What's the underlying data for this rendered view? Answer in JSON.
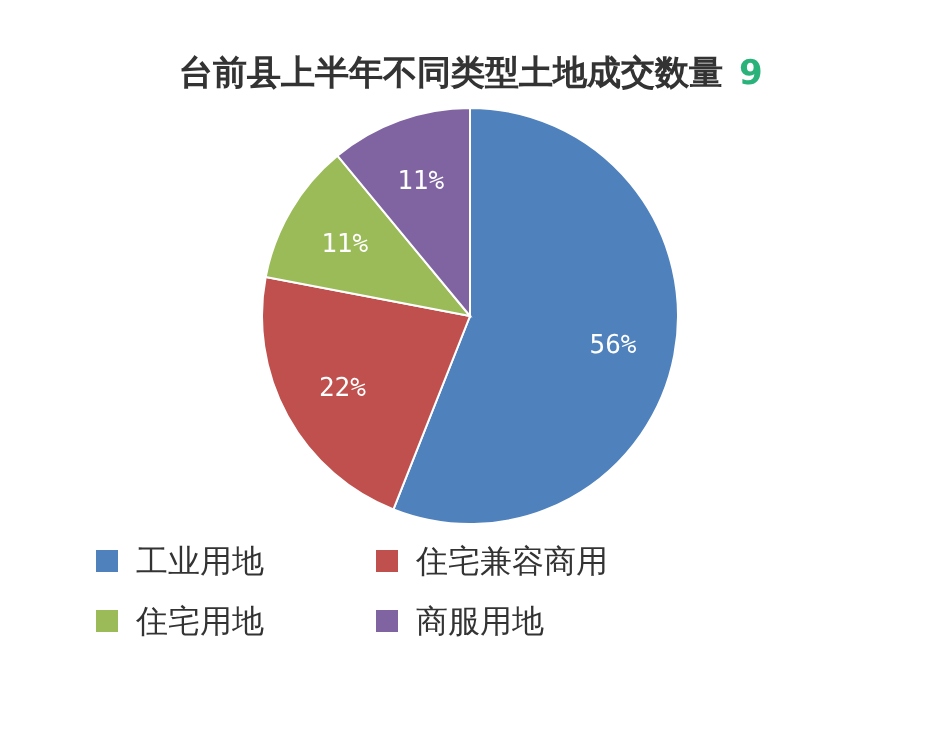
{
  "chart_data": {
    "type": "pie",
    "title": "台前县上半年不同类型土地成交数量",
    "annotations": [
      "9"
    ],
    "categories": [
      "工业用地",
      "住宅兼容商用",
      "住宅用地",
      "商服用地"
    ],
    "values": [
      56,
      22,
      11,
      11
    ],
    "colors": [
      "#4f81bd",
      "#c0504d",
      "#9bbb59",
      "#8064a2"
    ],
    "value_labels": [
      "56%",
      "22%",
      "11%",
      "11%"
    ],
    "legend": "bottom"
  }
}
